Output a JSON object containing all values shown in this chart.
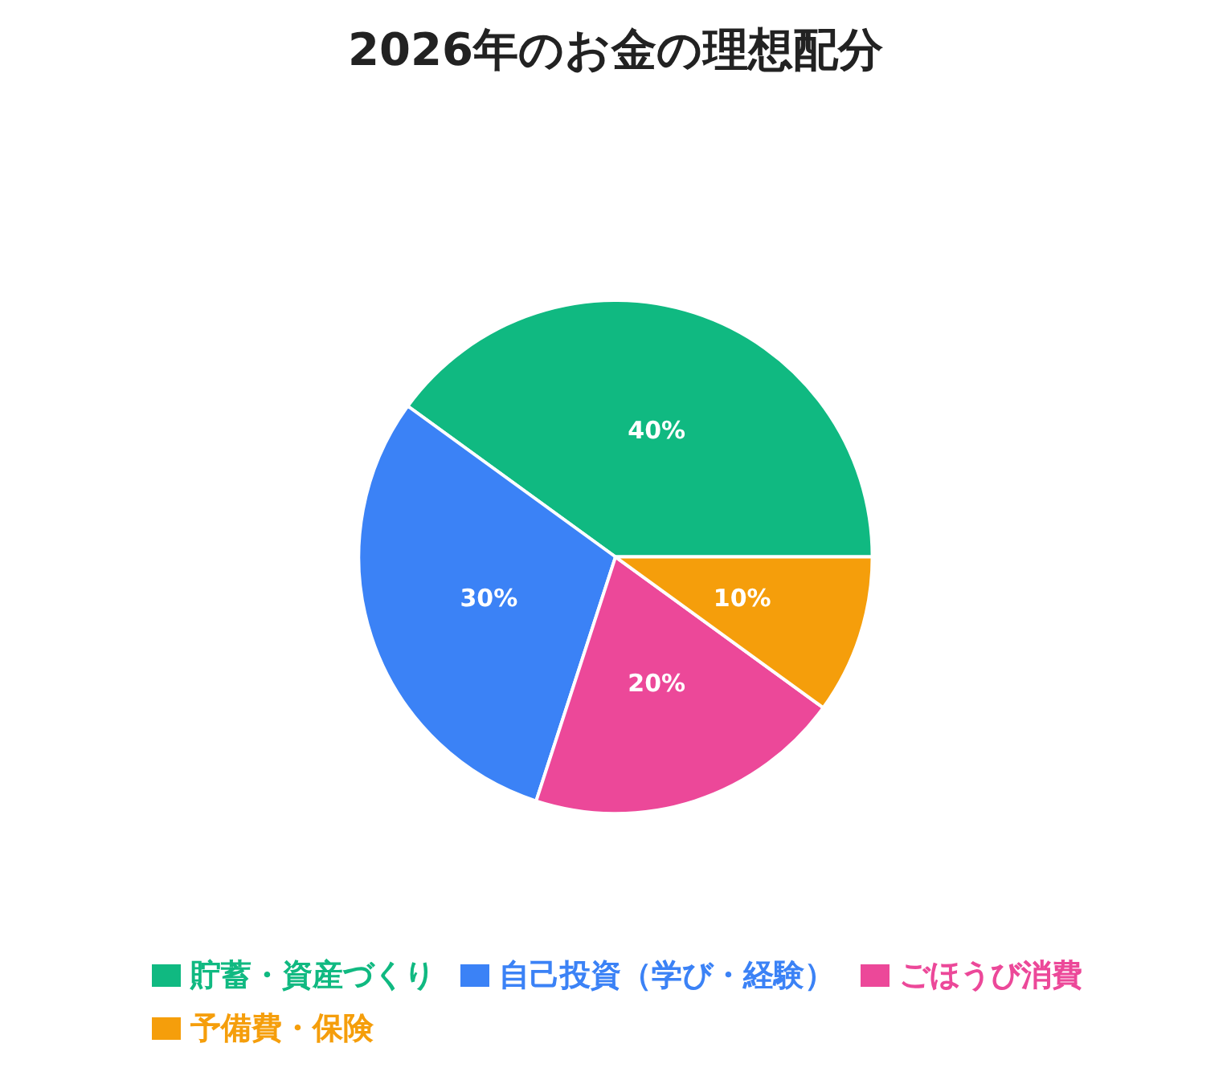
{
  "chart_data": {
    "type": "pie",
    "title": "2026年のお金の理想配分",
    "categories": [
      "貯蓄・資産づくり",
      "自己投資（学び・経験）",
      "ごほうび消費",
      "予備費・保険"
    ],
    "values": [
      40,
      30,
      20,
      10
    ],
    "colors": [
      "#10b981",
      "#3b82f6",
      "#ec4899",
      "#f59e0b"
    ],
    "value_labels": [
      "40%",
      "30%",
      "20%",
      "10%"
    ],
    "legend": "bottom"
  }
}
